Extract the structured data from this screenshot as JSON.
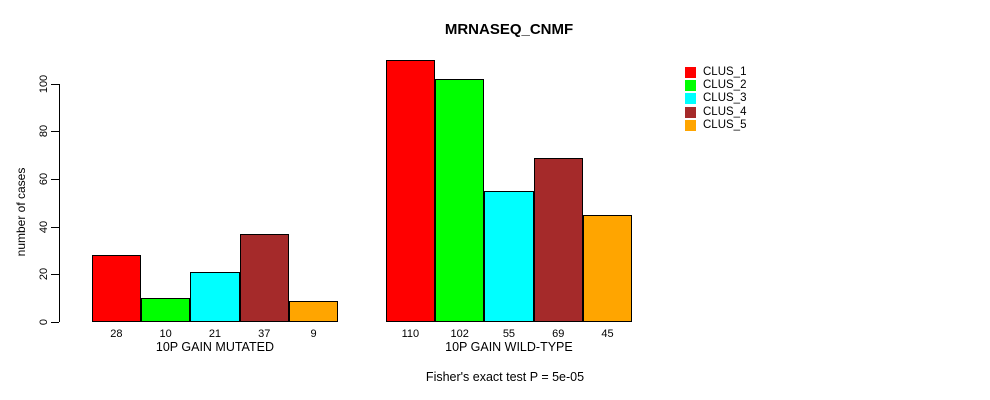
{
  "chart_data": {
    "type": "bar",
    "title": "MRNASEQ_CNMF",
    "ylabel": "number of cases",
    "caption": "Fisher's exact test P = 5e-05",
    "ylim": [
      0,
      110
    ],
    "yticks": [
      0,
      20,
      40,
      60,
      80,
      100
    ],
    "grid": false,
    "legend_position": "right",
    "categories": [
      "10P GAIN MUTATED",
      "10P GAIN WILD-TYPE"
    ],
    "series": [
      {
        "name": "CLUS_1",
        "color": "#FF0000",
        "values": [
          28,
          110
        ]
      },
      {
        "name": "CLUS_2",
        "color": "#00FF00",
        "values": [
          10,
          102
        ]
      },
      {
        "name": "CLUS_3",
        "color": "#00FFFF",
        "values": [
          21,
          55
        ]
      },
      {
        "name": "CLUS_4",
        "color": "#A52A2A",
        "values": [
          37,
          69
        ]
      },
      {
        "name": "CLUS_5",
        "color": "#FFA500",
        "values": [
          9,
          45
        ]
      }
    ],
    "bar_value_labels": [
      [
        "28",
        "10",
        "21",
        "37",
        "9"
      ],
      [
        "110",
        "102",
        "55",
        "69",
        "45"
      ]
    ],
    "axis_color": "#000000",
    "bar_border_color": "#000000",
    "background_color": "#FFFFFF"
  }
}
